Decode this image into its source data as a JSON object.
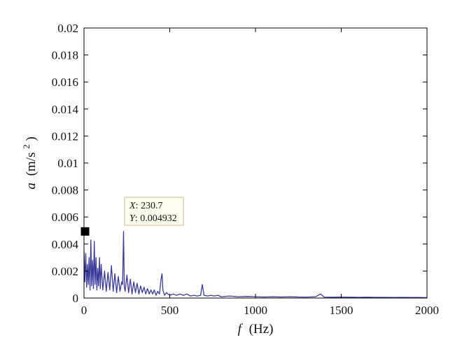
{
  "chart_data": {
    "type": "line",
    "title": "",
    "xlabel": {
      "var": "f",
      "unit": "(Hz)"
    },
    "ylabel": {
      "var": "a",
      "unit_prefix": "(m/s",
      "unit_sup": "2",
      "unit_suffix": ")"
    },
    "xlim": [
      0,
      2000
    ],
    "ylim": [
      0,
      0.02
    ],
    "grid": false,
    "x_ticks": [
      0,
      500,
      1000,
      1500,
      2000
    ],
    "x_tick_labels": [
      "0",
      "500",
      "1000",
      "1500",
      "2000"
    ],
    "y_ticks": [
      0,
      0.002,
      0.004,
      0.006,
      0.008,
      0.01,
      0.012,
      0.014,
      0.016,
      0.018,
      0.02
    ],
    "y_tick_labels": [
      "0",
      "0.002",
      "0.004",
      "0.006",
      "0.008",
      "0.01",
      "0.012",
      "0.014",
      "0.016",
      "0.018",
      "0.02"
    ],
    "line_color": "#3a3a9a",
    "series": [
      {
        "x": [
          0,
          5,
          10,
          15,
          20,
          25,
          30,
          35,
          40,
          45,
          50,
          55,
          60,
          65,
          70,
          75,
          80,
          85,
          90,
          95,
          100,
          110,
          120,
          130,
          140,
          150,
          160,
          170,
          180,
          190,
          200,
          210,
          220,
          225,
          230.7,
          235,
          240,
          250,
          260,
          270,
          280,
          290,
          300,
          310,
          320,
          330,
          340,
          350,
          360,
          370,
          380,
          390,
          400,
          410,
          420,
          430,
          440,
          450,
          455,
          460,
          470,
          480,
          500,
          520,
          540,
          560,
          580,
          600,
          620,
          640,
          660,
          680,
          690,
          700,
          720,
          740,
          760,
          780,
          800,
          850,
          900,
          950,
          1000,
          1050,
          1100,
          1150,
          1200,
          1250,
          1300,
          1350,
          1380,
          1400,
          1450,
          1500,
          1550,
          1600,
          1650,
          1700,
          1750,
          1800,
          1850,
          1900,
          1950,
          2000
        ],
        "y": [
          0.0035,
          0.0012,
          0.0033,
          0.0008,
          0.0025,
          0.001,
          0.003,
          0.0006,
          0.0043,
          0.0009,
          0.0028,
          0.0007,
          0.0042,
          0.001,
          0.003,
          0.0006,
          0.0022,
          0.0009,
          0.003,
          0.0007,
          0.0025,
          0.0006,
          0.002,
          0.0005,
          0.0019,
          0.0006,
          0.0024,
          0.0005,
          0.0018,
          0.0004,
          0.0016,
          0.0005,
          0.0012,
          0.001,
          0.004932,
          0.0008,
          0.0005,
          0.0017,
          0.0004,
          0.0014,
          0.0003,
          0.0012,
          0.0004,
          0.0011,
          0.0003,
          0.0009,
          0.0004,
          0.0008,
          0.0003,
          0.0007,
          0.0003,
          0.0006,
          0.0003,
          0.0006,
          0.0002,
          0.0005,
          0.0003,
          0.0015,
          0.0018,
          0.0006,
          0.0002,
          0.0004,
          0.0002,
          0.0003,
          0.0002,
          0.0003,
          0.0002,
          0.0003,
          0.00015,
          0.0002,
          0.00015,
          0.0002,
          0.001,
          0.0002,
          0.00015,
          0.0002,
          0.00015,
          0.0002,
          0.0001,
          0.00015,
          0.0001,
          0.00012,
          0.0001,
          8e-05,
          0.0001,
          8e-05,
          0.0001,
          8e-05,
          7e-05,
          0.0001,
          0.0003,
          7e-05,
          6e-05,
          7e-05,
          6e-05,
          5e-05,
          6e-05,
          5e-05,
          5e-05,
          4e-05,
          5e-05,
          4e-05,
          4e-05,
          3e-05
        ]
      }
    ],
    "datatip": {
      "x_label": "X",
      "x_value": "230.7",
      "y_label": "Y",
      "y_value": "0.004932",
      "x": 230.7,
      "y": 0.004932
    }
  }
}
